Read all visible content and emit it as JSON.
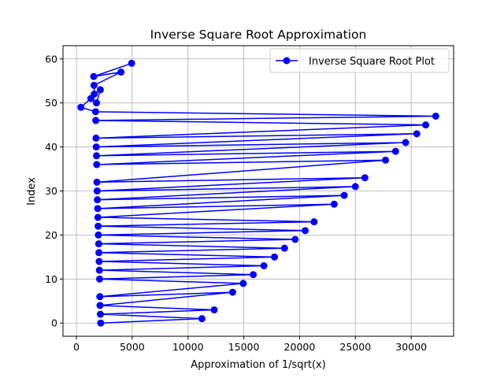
{
  "chart_data": {
    "type": "line",
    "title": "Inverse Square Root Approximation",
    "xlabel": "Approximation of 1/sqrt(x)",
    "ylabel": "Index",
    "xlim": [
      -1200,
      33800
    ],
    "ylim": [
      -3,
      63
    ],
    "xticks": [
      0,
      5000,
      10000,
      15000,
      20000,
      25000,
      30000
    ],
    "xtick_labels": [
      "0",
      "5000",
      "10000",
      "15000",
      "20000",
      "25000",
      "30000"
    ],
    "yticks": [
      0,
      10,
      20,
      30,
      40,
      50,
      60
    ],
    "ytick_labels": [
      "0",
      "10",
      "20",
      "30",
      "40",
      "50",
      "60"
    ],
    "grid": true,
    "legend_position": "top-right",
    "color": "#0000ff",
    "series": [
      {
        "name": "Inverse Square Root Plot",
        "x": [
          2180,
          11250,
          2150,
          12350,
          2120,
          14000,
          2100,
          14950,
          2080,
          15850,
          2060,
          16800,
          2040,
          17750,
          2020,
          18650,
          2000,
          19600,
          1970,
          20500,
          1950,
          21300,
          1930,
          23100,
          1910,
          24000,
          1880,
          25000,
          1860,
          25850,
          1840,
          27700,
          1820,
          28600,
          1800,
          29500,
          1780,
          30500,
          1760,
          31300,
          1740,
          32200,
          1720,
          400,
          1300,
          1800,
          2150,
          1600,
          1580,
          4000,
          1550,
          4950
        ],
        "y": [
          0,
          1,
          2,
          3,
          4,
          7,
          6,
          9,
          10,
          11,
          12,
          13,
          14,
          15,
          16,
          17,
          18,
          19,
          20,
          21,
          22,
          23,
          24,
          27,
          26,
          29,
          28,
          31,
          30,
          33,
          32,
          37,
          36,
          39,
          38,
          41,
          40,
          43,
          42,
          45,
          46,
          47,
          48,
          49,
          51,
          50,
          53,
          52,
          54,
          57,
          56,
          59
        ]
      }
    ]
  }
}
